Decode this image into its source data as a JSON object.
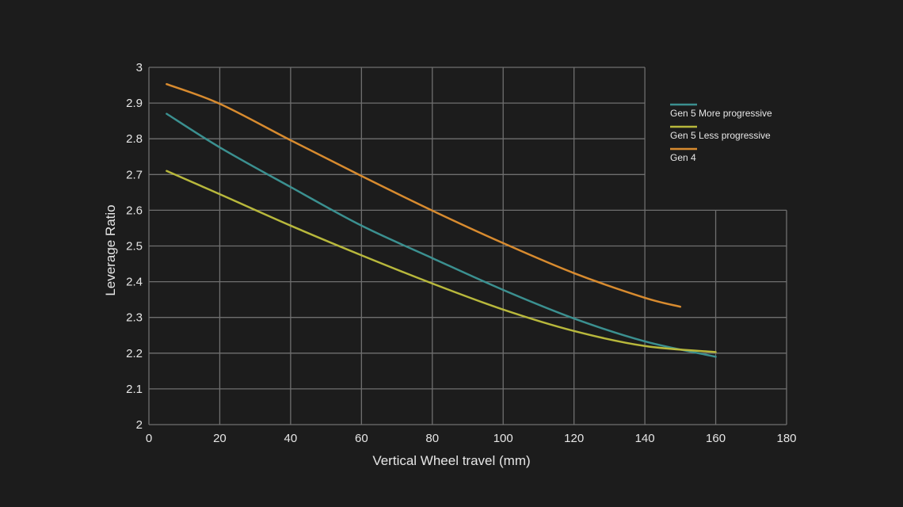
{
  "chart_data": {
    "type": "line",
    "title": "",
    "xlabel": "Vertical Wheel travel (mm)",
    "ylabel": "Leverage Ratio",
    "xlim": [
      0,
      180
    ],
    "ylim": [
      2,
      3
    ],
    "xticks": [
      "0",
      "20",
      "40",
      "60",
      "80",
      "100",
      "120",
      "140",
      "160",
      "180"
    ],
    "yticks": [
      "2",
      "2.1",
      "2.2",
      "2.3",
      "2.4",
      "2.5",
      "2.6",
      "2.7",
      "2.8",
      "2.9",
      "3"
    ],
    "grid": true,
    "legend_position": "right",
    "background": "#1c1c1c",
    "grid_color": "#6f6f6f",
    "series": [
      {
        "name": "Gen 5 More progressive",
        "color": "#3b9090",
        "x": [
          5,
          20,
          40,
          60,
          80,
          100,
          120,
          140,
          160
        ],
        "y": [
          2.87,
          2.776,
          2.665,
          2.557,
          2.466,
          2.377,
          2.297,
          2.233,
          2.19
        ]
      },
      {
        "name": "Gen 5 Less progressive",
        "color": "#b8b83c",
        "x": [
          5,
          20,
          40,
          60,
          80,
          100,
          120,
          140,
          160
        ],
        "y": [
          2.71,
          2.645,
          2.557,
          2.474,
          2.395,
          2.322,
          2.262,
          2.22,
          2.203
        ]
      },
      {
        "name": "Gen 4",
        "color": "#d88b2f",
        "x": [
          5,
          20,
          40,
          60,
          80,
          100,
          120,
          140,
          150
        ],
        "y": [
          2.953,
          2.898,
          2.796,
          2.696,
          2.599,
          2.508,
          2.424,
          2.355,
          2.33
        ]
      }
    ]
  }
}
